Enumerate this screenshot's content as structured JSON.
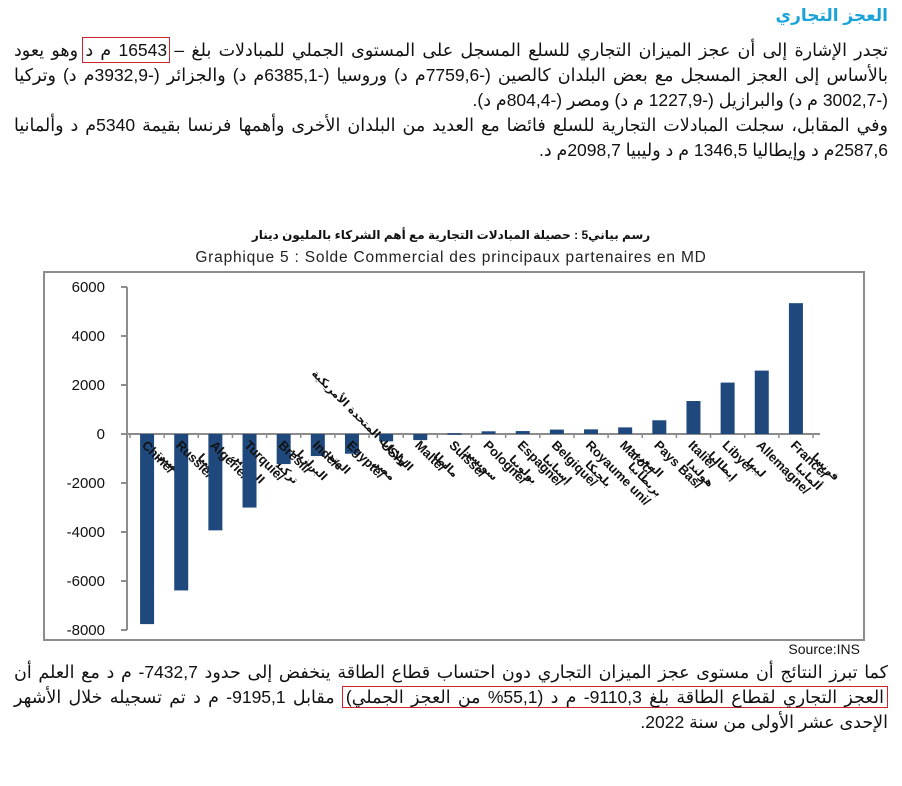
{
  "heading": "العجز التجاري",
  "paragraph1": {
    "part_a": "تجدر الإشارة إلى أن عجز الميزان التجاري للسلع المسجل على المستوى الجملي للمبادلات بلغ – ",
    "highlight": "16543 م د",
    "part_b": "  وهو يعود بالأساس إلى العجز المسجل مع بعض البلدان كالصين (-7759,6م د) وروسيا (-6385,1م د) والجزائر (-3932,9م د) وتركيا (-3002,7 م د) والبرازيل (-1227,9 م د) ومصر (-804,4م د).",
    "part_c": "وفي المقابل، سجلت المبادلات التجارية للسلع فائضا مع العديد من البلدان الأخرى وأهمها فرنسا بقيمة 5340م د وألمانيا 2587,6م د وإيطاليا 1346,5 م د وليبيا 2098,7م د."
  },
  "chart_titles": {
    "arabic": "رسم بياني5 : حصيلة المبادلات التجارية مع أهم الشركاء بالمليون دينار",
    "french": "Graphique 5 : Solde Commercial des principaux partenaires en MD"
  },
  "source": "Source:INS",
  "paragraph2": {
    "part_a": "كما تبرز النتائج أن مستوى عجز الميزان التجاري دون احتساب قطاع الطاقة ينخفض إلى حدود 7432,7- م د مع العلم أن ",
    "highlight": "العجز التجاري لقطاع الطاقة بلغ 9110,3- م د (55,1% من العجز الجملي)",
    "part_b": " مقابل 9195,1- م د تم تسجيله خلال الأشهر الإحدى عشر الأولى من سنة 2022."
  },
  "chart_data": {
    "type": "bar",
    "title": "Graphique 5 : Solde Commercial des principaux partenaires en MD",
    "subtitle": "رسم بياني5 : حصيلة المبادلات التجارية مع أهم الشركاء بالمليون دينار",
    "xlabel": "",
    "ylabel": "",
    "unit": "MD",
    "ylim": [
      -8000,
      6000
    ],
    "yticks": [
      6000,
      4000,
      2000,
      0,
      -2000,
      -4000,
      -6000,
      -8000
    ],
    "grid": false,
    "legend": null,
    "bar_color": "#1F497D",
    "categories": [
      "Chine/الصين",
      "Russie/روسيا",
      "Algérie/الجزائر",
      "Turquie/تركيا",
      "Bresil/البرازيل",
      "Inde/الهند",
      "Egypte/مصر",
      "USA/الولايات المتحدة الأمريكية",
      "Malte/مالطا",
      "Suisse/سويسرا",
      "Pologne/بولونيا",
      "Espagne/إسبانيا",
      "Belgique/بلجيكا",
      "Royaume uni/بريطانيا",
      "Maroc/المغرب",
      "Pays Bas/هولندا",
      "Italie/إيطاليا",
      "Libye/ليبيا",
      "Allemagne/ألمانيا",
      "France/فرنسا"
    ],
    "labels_fr": [
      "Chine",
      "Russie",
      "Algérie",
      "Turquie",
      "Bresil",
      "Inde",
      "Egypte",
      "USA",
      "Malte",
      "Suisse",
      "Pologne",
      "Espagne",
      "Belgique",
      "Royaume uni",
      "Maroc",
      "Pays Bas",
      "Italie",
      "Libye",
      "Allemagne",
      "France"
    ],
    "labels_ar": [
      "الصين",
      "روسيا",
      "الجزائر",
      "تركيا",
      "البرازيل",
      "الهند",
      "مصر",
      "الولايات المتحدة الأمريكية",
      "مالطا",
      "سويسرا",
      "بولونيا",
      "إسبانيا",
      "بلجيكا",
      "بريطانيا",
      "المغرب",
      "هولندا",
      "إيطاليا",
      "ليبيا",
      "ألمانيا",
      "فرنسا"
    ],
    "values": [
      -7759.6,
      -6385.1,
      -3932.9,
      -3002.7,
      -1227.9,
      -900,
      -804.4,
      -300,
      -250,
      30,
      110,
      120,
      180,
      190,
      270,
      560,
      1346.5,
      2098.7,
      2587.6,
      5340
    ]
  }
}
